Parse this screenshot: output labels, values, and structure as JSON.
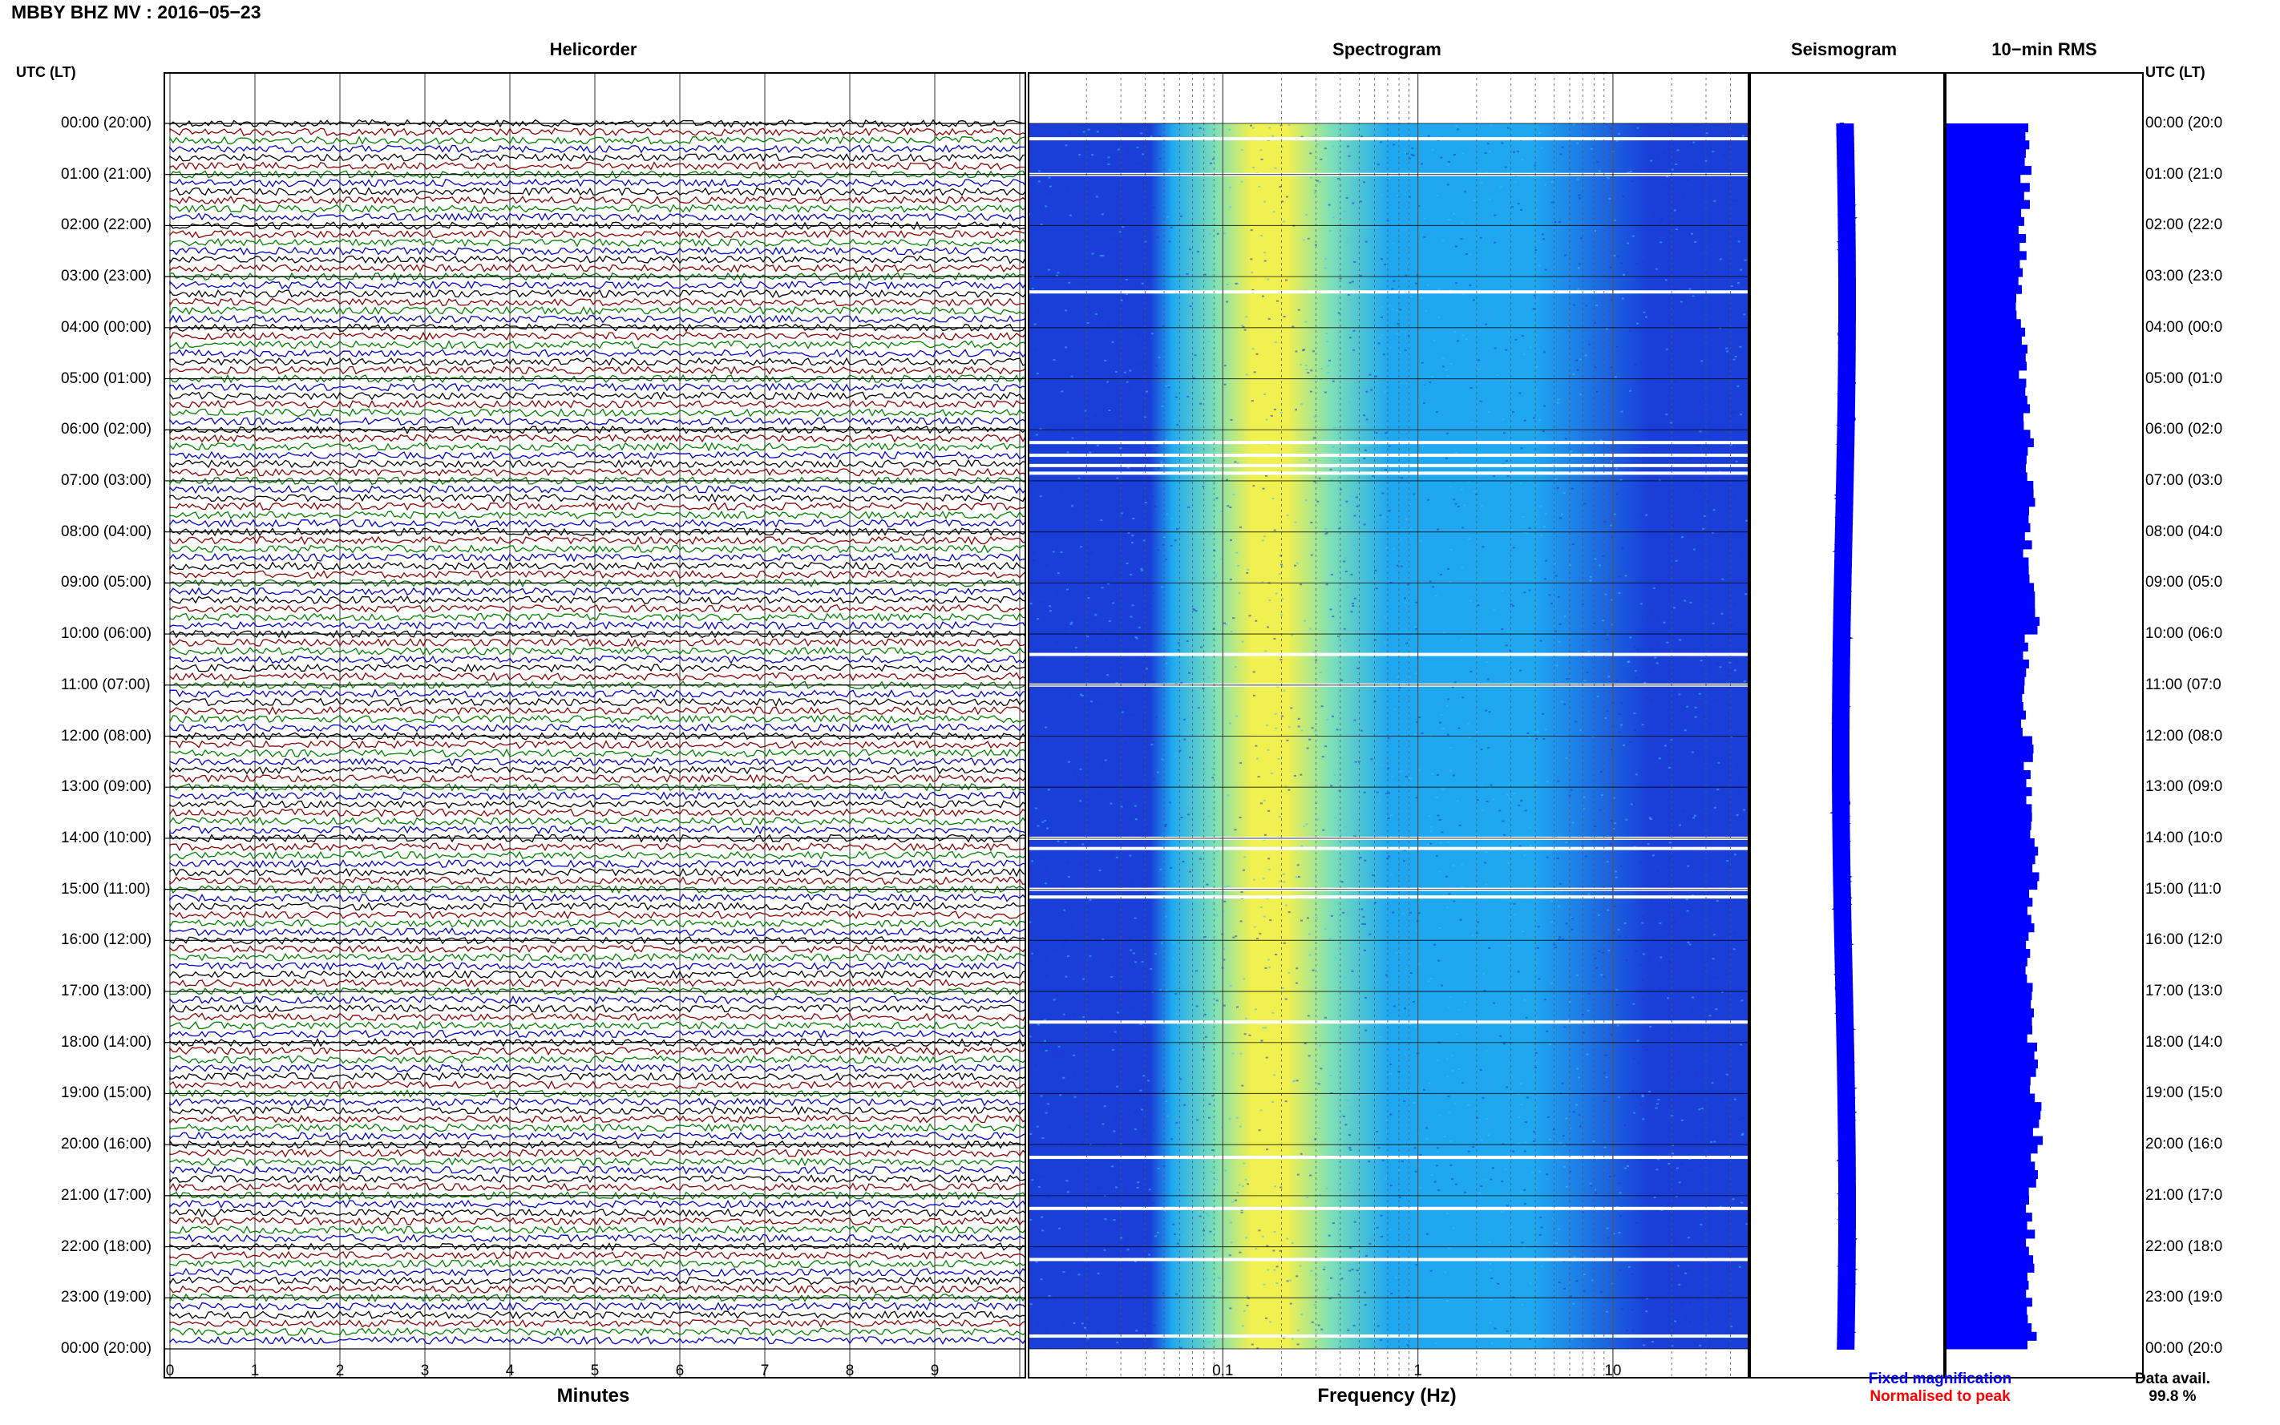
{
  "title": "MBBY BHZ MV : 2016−05−23",
  "headers": {
    "helicorder": "Helicorder",
    "spectrogram": "Spectrogram",
    "seismogram": "Seismogram",
    "rms": "10−min RMS"
  },
  "utc_label_left": "UTC (LT)",
  "utc_label_right": "UTC (LT)",
  "time_labels_left": [
    "00:00 (20:00)",
    "01:00 (21:00)",
    "02:00 (22:00)",
    "03:00 (23:00)",
    "04:00 (00:00)",
    "05:00 (01:00)",
    "06:00 (02:00)",
    "07:00 (03:00)",
    "08:00 (04:00)",
    "09:00 (05:00)",
    "10:00 (06:00)",
    "11:00 (07:00)",
    "12:00 (08:00)",
    "13:00 (09:00)",
    "14:00 (10:00)",
    "15:00 (11:00)",
    "16:00 (12:00)",
    "17:00 (13:00)",
    "18:00 (14:00)",
    "19:00 (15:00)",
    "20:00 (16:00)",
    "21:00 (17:00)",
    "22:00 (18:00)",
    "23:00 (19:00)",
    "00:00 (20:00)"
  ],
  "time_labels_right": [
    "00:00 (20:0",
    "01:00 (21:0",
    "02:00 (22:0",
    "03:00 (23:0",
    "04:00 (00:0",
    "05:00 (01:0",
    "06:00 (02:0",
    "07:00 (03:0",
    "08:00 (04:0",
    "09:00 (05:0",
    "10:00 (06:0",
    "11:00 (07:0",
    "12:00 (08:0",
    "13:00 (09:0",
    "14:00 (10:0",
    "15:00 (11:0",
    "16:00 (12:0",
    "17:00 (13:0",
    "18:00 (14:0",
    "19:00 (15:0",
    "20:00 (16:0",
    "21:00 (17:0",
    "22:00 (18:0",
    "23:00 (19:0",
    "00:00 (20:0"
  ],
  "helicorder": {
    "xlabel": "Minutes",
    "xticks": [
      "0",
      "1",
      "2",
      "3",
      "4",
      "5",
      "6",
      "7",
      "8",
      "9"
    ],
    "trace_colors": [
      "#000000",
      "#8b0000",
      "#008000",
      "#0000cd"
    ],
    "traces_per_hour": 6
  },
  "spectrogram": {
    "xlabel": "Frequency (Hz)",
    "xticks": [
      "0.1",
      "1",
      "10"
    ],
    "scale": "log",
    "xlim": [
      0.01,
      50
    ],
    "colors": [
      "#1a3fd8",
      "#1fa8f0",
      "#7de0b8",
      "#f0f050"
    ],
    "gap_hours": [
      0.3,
      1.0,
      3.3,
      6.25,
      6.5,
      6.7,
      6.85,
      10.4,
      11.0,
      14.0,
      14.2,
      15.0,
      15.15,
      17.6,
      20.25,
      21.25,
      22.25,
      23.75
    ]
  },
  "seismogram": {
    "color": "#0000ff"
  },
  "chart_data": {
    "type": "bar",
    "title": "10−min RMS",
    "categories": [
      "00:00",
      "01:00",
      "02:00",
      "03:00",
      "04:00",
      "05:00",
      "06:00",
      "07:00",
      "08:00",
      "09:00",
      "10:00",
      "11:00",
      "12:00",
      "13:00",
      "14:00",
      "15:00",
      "16:00",
      "17:00",
      "18:00",
      "19:00",
      "20:00",
      "21:00",
      "22:00",
      "23:00"
    ],
    "values": [
      0.88,
      0.85,
      0.82,
      0.8,
      0.83,
      0.86,
      0.9,
      0.92,
      0.88,
      0.95,
      0.87,
      0.85,
      0.89,
      0.91,
      0.97,
      0.93,
      0.9,
      0.92,
      0.94,
      0.98,
      0.93,
      0.91,
      0.9,
      0.92
    ],
    "color": "#0000ff",
    "xlabel": "",
    "ylabel": ""
  },
  "legend": {
    "fixed": "Fixed magnification",
    "fixed_color": "#0000ff",
    "normalised": "Normalised to peak",
    "normalised_color": "#ff0000"
  },
  "data_avail": {
    "label": "Data avail.",
    "value": "99.8 %"
  }
}
